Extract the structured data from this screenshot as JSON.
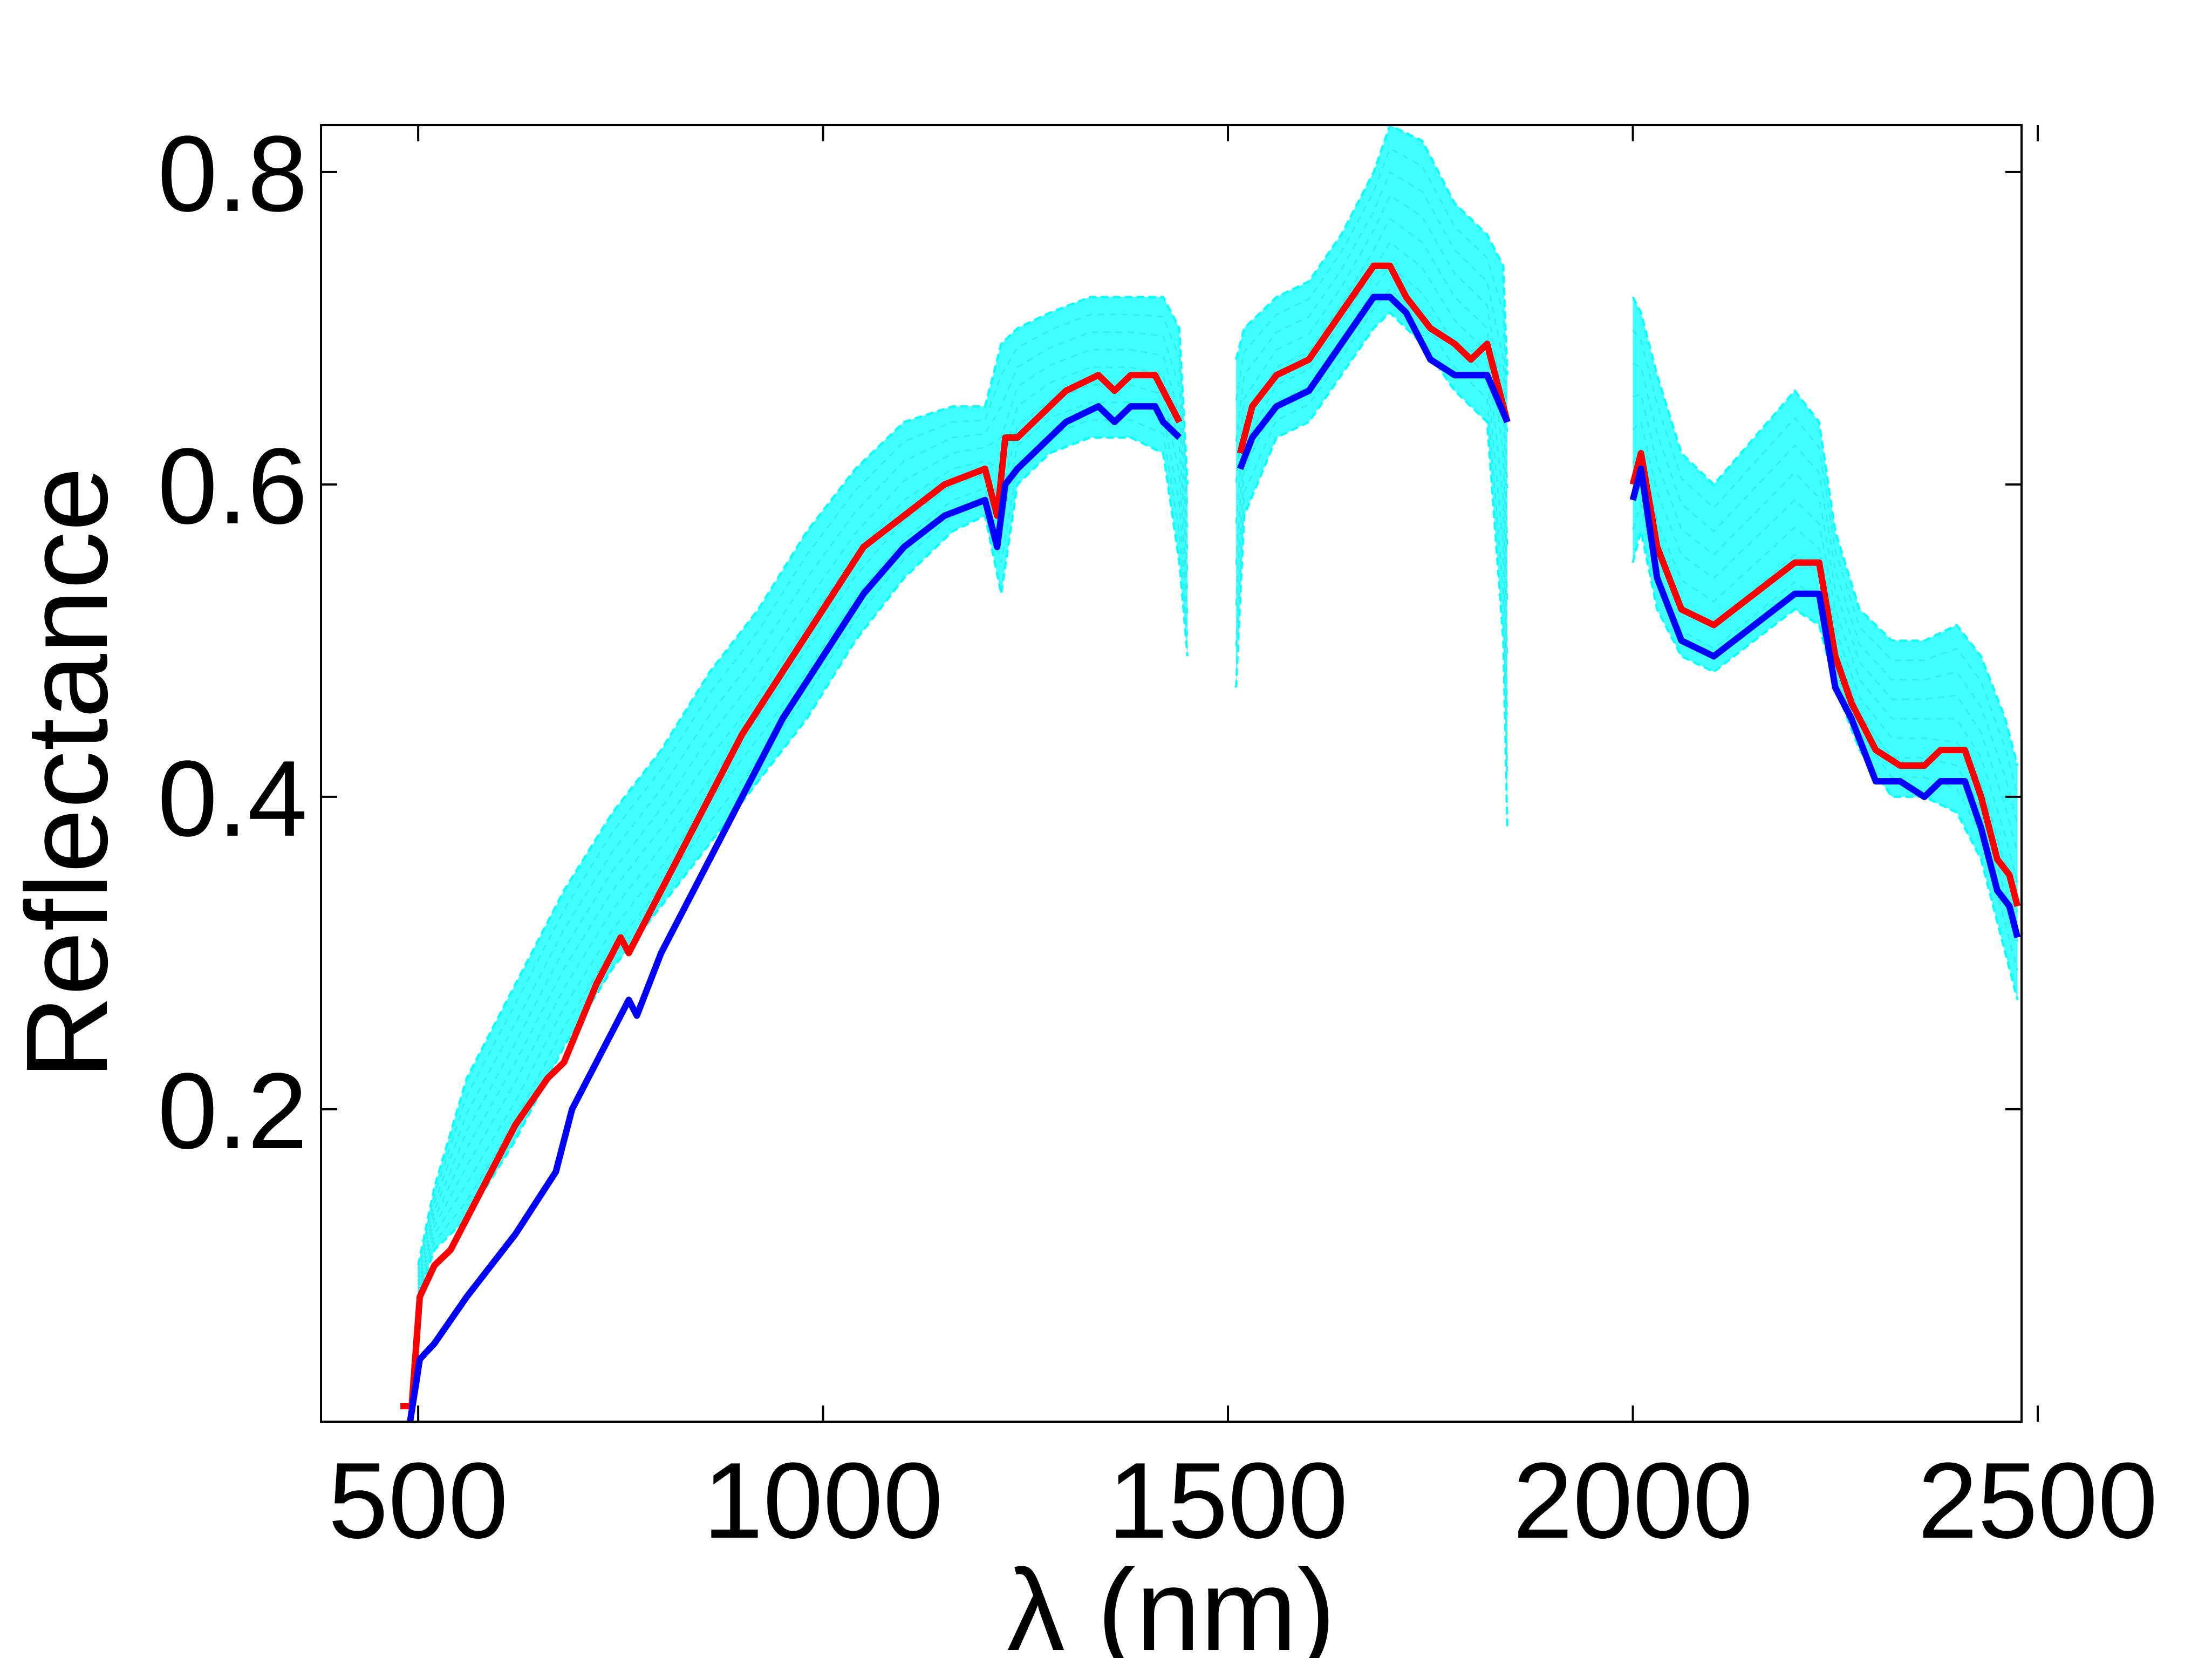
{
  "chart_data": {
    "type": "line",
    "title": "",
    "xlabel": "λ (nm)",
    "ylabel": "Reflectance",
    "xlim": [
      380,
      2480
    ],
    "ylim": [
      0.0,
      0.83
    ],
    "xticks": [
      500,
      1000,
      1500,
      2000,
      2500
    ],
    "yticks": [
      0.2,
      0.4,
      0.6,
      0.8
    ],
    "xtick_labels": [
      "500",
      "1000",
      "1500",
      "2000",
      "2500"
    ],
    "ytick_labels": [
      "0.2",
      "0.4",
      "0.6",
      "0.8"
    ],
    "grid": false,
    "legend": "none",
    "bands": [
      {
        "x": [
          500,
          520,
          560,
          620,
          680,
          740,
          800,
          860,
          920,
          980,
          1040,
          1100,
          1160,
          1200,
          1220,
          1240,
          1280,
          1330,
          1380,
          1420,
          1440,
          1450
        ],
        "lower": [
          0.08,
          0.11,
          0.13,
          0.18,
          0.24,
          0.29,
          0.33,
          0.37,
          0.41,
          0.45,
          0.5,
          0.54,
          0.57,
          0.58,
          0.53,
          0.6,
          0.62,
          0.63,
          0.63,
          0.62,
          0.55,
          0.49
        ],
        "upper": [
          0.1,
          0.15,
          0.22,
          0.28,
          0.34,
          0.39,
          0.43,
          0.48,
          0.52,
          0.57,
          0.61,
          0.64,
          0.65,
          0.65,
          0.69,
          0.7,
          0.71,
          0.72,
          0.72,
          0.72,
          0.7,
          0.6
        ]
      },
      {
        "x": [
          1510,
          1520,
          1560,
          1600,
          1640,
          1680,
          1700,
          1740,
          1780,
          1820,
          1840,
          1845
        ],
        "lower": [
          0.47,
          0.58,
          0.63,
          0.64,
          0.67,
          0.7,
          0.71,
          0.69,
          0.66,
          0.64,
          0.5,
          0.38
        ],
        "upper": [
          0.68,
          0.7,
          0.72,
          0.73,
          0.76,
          0.8,
          0.83,
          0.82,
          0.78,
          0.76,
          0.74,
          0.67
        ]
      },
      {
        "x": [
          2000,
          2010,
          2030,
          2060,
          2100,
          2150,
          2200,
          2230,
          2250,
          2280,
          2320,
          2360,
          2400,
          2430,
          2460,
          2475
        ],
        "lower": [
          0.55,
          0.57,
          0.52,
          0.49,
          0.48,
          0.5,
          0.52,
          0.51,
          0.47,
          0.43,
          0.4,
          0.4,
          0.39,
          0.36,
          0.3,
          0.27
        ],
        "upper": [
          0.72,
          0.71,
          0.67,
          0.62,
          0.6,
          0.63,
          0.66,
          0.64,
          0.57,
          0.52,
          0.5,
          0.5,
          0.51,
          0.49,
          0.45,
          0.42
        ]
      }
    ],
    "series": [
      {
        "color": "#ff0000",
        "segments": [
          {
            "x": [
              478,
              492,
              502,
              520,
              540,
              580,
              620,
              660,
              680,
              720,
              750,
              760,
              800,
              850,
              900,
              950,
              1000,
              1050,
              1100,
              1150,
              1200,
              1215,
              1225,
              1240,
              1260,
              1280,
              1300,
              1340,
              1360,
              1380,
              1410,
              1420,
              1440
            ],
            "y": [
              0.01,
              0.01,
              0.08,
              0.1,
              0.11,
              0.15,
              0.19,
              0.22,
              0.23,
              0.28,
              0.31,
              0.3,
              0.34,
              0.39,
              0.44,
              0.48,
              0.52,
              0.56,
              0.58,
              0.6,
              0.61,
              0.58,
              0.63,
              0.63,
              0.64,
              0.65,
              0.66,
              0.67,
              0.66,
              0.67,
              0.67,
              0.66,
              0.64
            ]
          },
          {
            "x": [
              1515,
              1530,
              1560,
              1600,
              1640,
              1680,
              1700,
              1720,
              1750,
              1780,
              1800,
              1820,
              1845
            ],
            "y": [
              0.62,
              0.65,
              0.67,
              0.68,
              0.71,
              0.74,
              0.74,
              0.72,
              0.7,
              0.69,
              0.68,
              0.69,
              0.64
            ]
          },
          {
            "x": [
              2000,
              2010,
              2030,
              2060,
              2100,
              2150,
              2200,
              2230,
              2250,
              2270,
              2300,
              2330,
              2360,
              2380,
              2410,
              2430,
              2450,
              2465,
              2475
            ],
            "y": [
              0.6,
              0.62,
              0.56,
              0.52,
              0.51,
              0.53,
              0.55,
              0.55,
              0.49,
              0.46,
              0.43,
              0.42,
              0.42,
              0.43,
              0.43,
              0.4,
              0.36,
              0.35,
              0.33
            ]
          }
        ]
      },
      {
        "color": "#0000ff",
        "segments": [
          {
            "x": [
              490,
              502,
              520,
              560,
              620,
              670,
              690,
              720,
              760,
              770,
              800,
              850,
              900,
              950,
              1000,
              1050,
              1100,
              1150,
              1200,
              1215,
              1225,
              1240,
              1260,
              1280,
              1300,
              1340,
              1360,
              1380,
              1410,
              1420,
              1440
            ],
            "y": [
              0.0,
              0.04,
              0.05,
              0.08,
              0.12,
              0.16,
              0.2,
              0.23,
              0.27,
              0.26,
              0.3,
              0.35,
              0.4,
              0.45,
              0.49,
              0.53,
              0.56,
              0.58,
              0.59,
              0.56,
              0.6,
              0.61,
              0.62,
              0.63,
              0.64,
              0.65,
              0.64,
              0.65,
              0.65,
              0.64,
              0.63
            ]
          },
          {
            "x": [
              1515,
              1530,
              1560,
              1600,
              1640,
              1680,
              1700,
              1720,
              1750,
              1780,
              1800,
              1820,
              1845
            ],
            "y": [
              0.61,
              0.63,
              0.65,
              0.66,
              0.69,
              0.72,
              0.72,
              0.71,
              0.68,
              0.67,
              0.67,
              0.67,
              0.64
            ]
          },
          {
            "x": [
              2000,
              2010,
              2030,
              2060,
              2100,
              2150,
              2200,
              2230,
              2250,
              2270,
              2300,
              2330,
              2360,
              2380,
              2410,
              2430,
              2450,
              2465,
              2475
            ],
            "y": [
              0.59,
              0.61,
              0.54,
              0.5,
              0.49,
              0.51,
              0.53,
              0.53,
              0.47,
              0.45,
              0.41,
              0.41,
              0.4,
              0.41,
              0.41,
              0.38,
              0.34,
              0.33,
              0.31
            ]
          }
        ]
      }
    ],
    "band_color": "#00ffff"
  }
}
